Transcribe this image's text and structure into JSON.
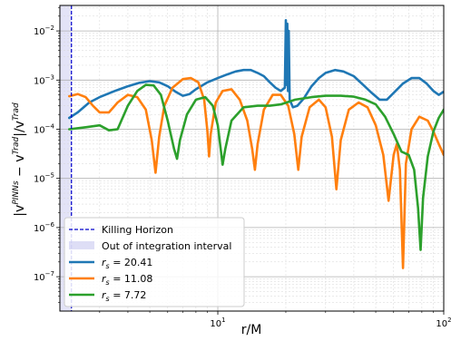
{
  "chart_data": {
    "type": "line",
    "title": "",
    "xlabel": "r/M",
    "ylabel": "|v^{PINNs} − v^{Trad}|/v^{Trad}",
    "xscale": "log",
    "yscale": "log",
    "xlim": [
      2.0,
      100
    ],
    "ylim": [
      2e-08,
      0.033
    ],
    "grid": true,
    "legend_position": "lower-left",
    "x_ticks": [
      {
        "value": 10,
        "base": "10",
        "exp": "1"
      },
      {
        "value": 100,
        "base": "10",
        "exp": "2"
      }
    ],
    "y_ticks": [
      {
        "value": 1e-07,
        "base": "10",
        "exp": "−7"
      },
      {
        "value": 1e-06,
        "base": "10",
        "exp": "−6"
      },
      {
        "value": 1e-05,
        "base": "10",
        "exp": "−5"
      },
      {
        "value": 0.0001,
        "base": "10",
        "exp": "−4"
      },
      {
        "value": 0.001,
        "base": "10",
        "exp": "−3"
      },
      {
        "value": 0.01,
        "base": "10",
        "exp": "−2"
      }
    ],
    "killing_horizon": {
      "x": 2.25,
      "label": "Killing Horizon",
      "color": "#0000cc"
    },
    "excluded_region": {
      "x": [
        2.0,
        2.25
      ],
      "label": "Out of integration interval",
      "color": "#c8c8f0"
    },
    "series": [
      {
        "name": "r_s = 20.41",
        "label_base": "r",
        "label_sub": "s",
        "label_value": " = 20.41",
        "color": "#1f77b4",
        "points": [
          [
            2.2,
            0.00017
          ],
          [
            2.4,
            0.00022
          ],
          [
            2.7,
            0.00035
          ],
          [
            3.0,
            0.00045
          ],
          [
            3.5,
            0.0006
          ],
          [
            4.0,
            0.00075
          ],
          [
            4.5,
            0.00088
          ],
          [
            5.0,
            0.00095
          ],
          [
            5.5,
            0.0009
          ],
          [
            6.0,
            0.00075
          ],
          [
            6.5,
            0.00058
          ],
          [
            7.0,
            0.00048
          ],
          [
            7.5,
            0.00052
          ],
          [
            8.0,
            0.00065
          ],
          [
            9.0,
            0.0009
          ],
          [
            10.0,
            0.0011
          ],
          [
            11.0,
            0.0013
          ],
          [
            12.0,
            0.0015
          ],
          [
            13.0,
            0.0016
          ],
          [
            14.0,
            0.0016
          ],
          [
            15.0,
            0.0014
          ],
          [
            16.0,
            0.0012
          ],
          [
            17.0,
            0.0009
          ],
          [
            18.0,
            0.0007
          ],
          [
            19.0,
            0.0006
          ],
          [
            19.8,
            0.0007
          ],
          [
            20.0,
            0.0165
          ],
          [
            20.15,
            0.0008
          ],
          [
            20.3,
            0.014
          ],
          [
            20.45,
            0.0006
          ],
          [
            20.6,
            0.01
          ],
          [
            20.8,
            0.0004
          ],
          [
            21.5,
            0.00028
          ],
          [
            22.5,
            0.0003
          ],
          [
            24.0,
            0.00042
          ],
          [
            26.0,
            0.00075
          ],
          [
            28.0,
            0.0011
          ],
          [
            30.0,
            0.0014
          ],
          [
            33.0,
            0.0016
          ],
          [
            36.0,
            0.0015
          ],
          [
            40.0,
            0.0012
          ],
          [
            44.0,
            0.0008
          ],
          [
            48.0,
            0.00055
          ],
          [
            52.0,
            0.0004
          ],
          [
            56.0,
            0.0004
          ],
          [
            60.0,
            0.00055
          ],
          [
            66.0,
            0.00085
          ],
          [
            72.0,
            0.0011
          ],
          [
            78.0,
            0.0011
          ],
          [
            84.0,
            0.00085
          ],
          [
            90.0,
            0.0006
          ],
          [
            95.0,
            0.0005
          ],
          [
            100.0,
            0.00058
          ]
        ]
      },
      {
        "name": "r_s = 11.08",
        "label_base": "r",
        "label_sub": "s",
        "label_value": " = 11.08",
        "color": "#ff7f0e",
        "points": [
          [
            2.2,
            0.00047
          ],
          [
            2.4,
            0.00052
          ],
          [
            2.6,
            0.00045
          ],
          [
            2.8,
            0.0003
          ],
          [
            3.0,
            0.00022
          ],
          [
            3.3,
            0.00022
          ],
          [
            3.6,
            0.00035
          ],
          [
            4.0,
            0.0005
          ],
          [
            4.4,
            0.00045
          ],
          [
            4.8,
            0.00025
          ],
          [
            5.1,
            6e-05
          ],
          [
            5.3,
            1.3e-05
          ],
          [
            5.5,
            7e-05
          ],
          [
            5.8,
            0.0003
          ],
          [
            6.3,
            0.0007
          ],
          [
            7.0,
            0.00105
          ],
          [
            7.6,
            0.0011
          ],
          [
            8.2,
            0.0009
          ],
          [
            8.7,
            0.0004
          ],
          [
            9.0,
            9e-05
          ],
          [
            9.15,
            2.8e-05
          ],
          [
            9.3,
            8e-05
          ],
          [
            9.8,
            0.00035
          ],
          [
            10.5,
            0.0006
          ],
          [
            11.5,
            0.00065
          ],
          [
            12.5,
            0.0004
          ],
          [
            13.5,
            0.00015
          ],
          [
            14.2,
            4e-05
          ],
          [
            14.6,
            1.5e-05
          ],
          [
            15.0,
            5e-05
          ],
          [
            16.0,
            0.00025
          ],
          [
            17.5,
            0.0005
          ],
          [
            19.0,
            0.0005
          ],
          [
            20.5,
            0.0003
          ],
          [
            21.8,
            8e-05
          ],
          [
            22.7,
            1.5e-05
          ],
          [
            23.5,
            7e-05
          ],
          [
            25.5,
            0.00028
          ],
          [
            28.0,
            0.0004
          ],
          [
            30.0,
            0.00028
          ],
          [
            32.0,
            7e-05
          ],
          [
            33.5,
            6e-06
          ],
          [
            35.0,
            6e-05
          ],
          [
            38.0,
            0.00025
          ],
          [
            42.0,
            0.00035
          ],
          [
            46.0,
            0.00028
          ],
          [
            50.0,
            0.00012
          ],
          [
            54.0,
            3e-05
          ],
          [
            57.0,
            3.5e-06
          ],
          [
            60.0,
            3e-05
          ],
          [
            62.0,
            5e-05
          ],
          [
            64.0,
            1.5e-05
          ],
          [
            66.0,
            1.5e-07
          ],
          [
            68.0,
            2e-05
          ],
          [
            72.0,
            0.0001
          ],
          [
            78.0,
            0.00018
          ],
          [
            85.0,
            0.00015
          ],
          [
            90.0,
            9e-05
          ],
          [
            95.0,
            5e-05
          ],
          [
            100.0,
            3e-05
          ]
        ]
      },
      {
        "name": "r_s = 7.72",
        "label_base": "r",
        "label_sub": "s",
        "label_value": " = 7.72",
        "color": "#2ca02c",
        "points": [
          [
            2.2,
            0.0001
          ],
          [
            2.6,
            0.00011
          ],
          [
            3.0,
            0.00012
          ],
          [
            3.3,
            9.5e-05
          ],
          [
            3.6,
            0.0001
          ],
          [
            4.0,
            0.0003
          ],
          [
            4.4,
            0.0006
          ],
          [
            4.8,
            0.0008
          ],
          [
            5.2,
            0.00078
          ],
          [
            5.6,
            0.0005
          ],
          [
            6.0,
            0.00015
          ],
          [
            6.4,
            4e-05
          ],
          [
            6.6,
            2.5e-05
          ],
          [
            6.8,
            6e-05
          ],
          [
            7.3,
            0.0002
          ],
          [
            8.0,
            0.0004
          ],
          [
            8.8,
            0.00045
          ],
          [
            9.5,
            0.0003
          ],
          [
            10.0,
            0.00012
          ],
          [
            10.3,
            4e-05
          ],
          [
            10.5,
            1.9e-05
          ],
          [
            10.8,
            4e-05
          ],
          [
            11.5,
            0.00015
          ],
          [
            13.0,
            0.00028
          ],
          [
            15.0,
            0.0003
          ],
          [
            17.0,
            0.0003
          ],
          [
            19.0,
            0.00032
          ],
          [
            22.0,
            0.0004
          ],
          [
            26.0,
            0.00045
          ],
          [
            30.0,
            0.00048
          ],
          [
            35.0,
            0.00048
          ],
          [
            40.0,
            0.00046
          ],
          [
            45.0,
            0.0004
          ],
          [
            50.0,
            0.00032
          ],
          [
            55.0,
            0.00018
          ],
          [
            60.0,
            8e-05
          ],
          [
            65.0,
            3.5e-05
          ],
          [
            70.0,
            3e-05
          ],
          [
            74.0,
            1.5e-05
          ],
          [
            77.0,
            2.5e-06
          ],
          [
            79.0,
            3.5e-07
          ],
          [
            81.0,
            4e-06
          ],
          [
            85.0,
            2.8e-05
          ],
          [
            90.0,
            9e-05
          ],
          [
            95.0,
            0.00017
          ],
          [
            100.0,
            0.00025
          ]
        ]
      }
    ]
  }
}
